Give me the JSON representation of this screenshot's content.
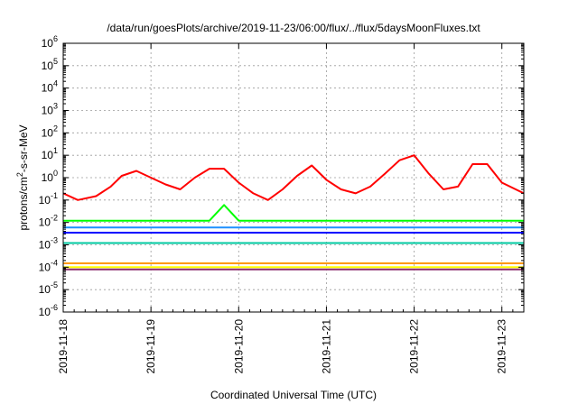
{
  "chart_data": {
    "type": "line",
    "title": "/data/run/goesPlots/archive/2019-11-23/06:00/flux/../flux/5daysMoonFluxes.txt",
    "xlabel": "Coordinated Universal Time (UTC)",
    "ylabel_parts": [
      "protons/cm",
      "2",
      "-s-sr-MeV"
    ],
    "y_scale": "log",
    "ylim": [
      1e-06,
      1000000.0
    ],
    "y_ticks": [
      {
        "base": "10",
        "exp": "-6",
        "value": 1e-06
      },
      {
        "base": "10",
        "exp": "-5",
        "value": 1e-05
      },
      {
        "base": "10",
        "exp": "-4",
        "value": 0.0001
      },
      {
        "base": "10",
        "exp": "-3",
        "value": 0.001
      },
      {
        "base": "10",
        "exp": "-2",
        "value": 0.01
      },
      {
        "base": "10",
        "exp": "-1",
        "value": 0.1
      },
      {
        "base": "10",
        "exp": "0",
        "value": 1
      },
      {
        "base": "10",
        "exp": "1",
        "value": 10
      },
      {
        "base": "10",
        "exp": "2",
        "value": 100
      },
      {
        "base": "10",
        "exp": "3",
        "value": 1000
      },
      {
        "base": "10",
        "exp": "4",
        "value": 10000
      },
      {
        "base": "10",
        "exp": "5",
        "value": 100000
      },
      {
        "base": "10",
        "exp": "6",
        "value": 1000000
      }
    ],
    "xlim": [
      "2019-11-18T00:00",
      "2019-11-23T06:00"
    ],
    "x_ticks": [
      "2019-11-18",
      "2019-11-19",
      "2019-11-20",
      "2019-11-21",
      "2019-11-22",
      "2019-11-23"
    ],
    "grid": true,
    "series": [
      {
        "color": "#ff0000",
        "x": [
          "2019-11-18T00:00",
          "2019-11-18T04:00",
          "2019-11-18T09:00",
          "2019-11-18T13:00",
          "2019-11-18T16:00",
          "2019-11-18T20:00",
          "2019-11-19T00:00",
          "2019-11-19T04:00",
          "2019-11-19T08:00",
          "2019-11-19T12:00",
          "2019-11-19T16:00",
          "2019-11-19T20:00",
          "2019-11-20T00:00",
          "2019-11-20T04:00",
          "2019-11-20T08:00",
          "2019-11-20T12:00",
          "2019-11-20T16:00",
          "2019-11-20T20:00",
          "2019-11-21T00:00",
          "2019-11-21T04:00",
          "2019-11-21T08:00",
          "2019-11-21T12:00",
          "2019-11-21T16:00",
          "2019-11-21T20:00",
          "2019-11-22T00:00",
          "2019-11-22T04:00",
          "2019-11-22T08:00",
          "2019-11-22T12:00",
          "2019-11-22T16:00",
          "2019-11-22T20:00",
          "2019-11-23T00:00",
          "2019-11-23T06:00"
        ],
        "values": [
          0.2,
          0.1,
          0.15,
          0.4,
          1.2,
          2.0,
          1.0,
          0.5,
          0.3,
          1.0,
          2.5,
          2.5,
          0.6,
          0.2,
          0.1,
          0.3,
          1.2,
          3.5,
          0.8,
          0.3,
          0.2,
          0.4,
          1.5,
          6.0,
          10,
          1.5,
          0.3,
          0.4,
          4.0,
          4.0,
          0.6,
          0.2
        ]
      },
      {
        "color": "#00ff00",
        "x": [
          "2019-11-18T00:00",
          "2019-11-19T16:00",
          "2019-11-19T20:00",
          "2019-11-20T00:00",
          "2019-11-23T06:00"
        ],
        "values": [
          0.012,
          0.012,
          0.06,
          0.012,
          0.012
        ]
      },
      {
        "color": "#1e90ff",
        "x": [
          "2019-11-18T00:00",
          "2019-11-23T06:00"
        ],
        "values": [
          0.006,
          0.006
        ]
      },
      {
        "color": "#0000ff",
        "x": [
          "2019-11-18T00:00",
          "2019-11-23T06:00"
        ],
        "values": [
          0.0035,
          0.0035
        ]
      },
      {
        "color": "#00c8a0",
        "x": [
          "2019-11-18T00:00",
          "2019-11-23T06:00"
        ],
        "values": [
          0.0012,
          0.0012
        ]
      },
      {
        "color": "#ffff00",
        "x": [
          "2019-11-18T00:00",
          "2019-11-23T06:00"
        ],
        "values": [
          0.0001,
          0.0001
        ]
      },
      {
        "color": "#ff9900",
        "x": [
          "2019-11-18T00:00",
          "2019-11-23T06:00"
        ],
        "values": [
          0.00015,
          0.00015
        ]
      },
      {
        "color": "#8b2a6f",
        "x": [
          "2019-11-18T00:00",
          "2019-11-23T06:00"
        ],
        "values": [
          8e-05,
          8e-05
        ]
      }
    ]
  }
}
